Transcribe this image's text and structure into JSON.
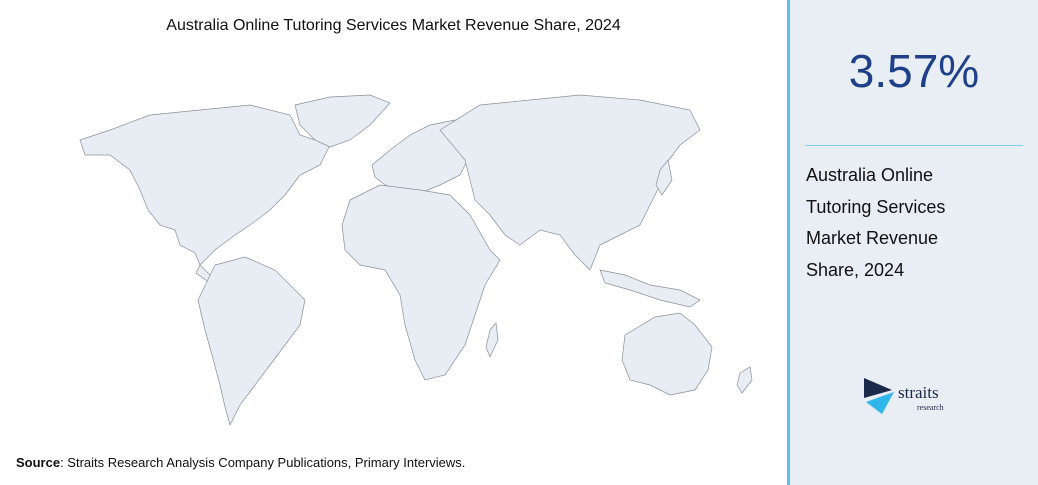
{
  "header": {
    "title": "Australia Online Tutoring Services Market Revenue Share, 2024"
  },
  "stat": {
    "value": "3.57%",
    "description": "Australia Online Tutoring Services Market Revenue Share, 2024"
  },
  "source": {
    "label": "Source",
    "text": ": Straits Research Analysis Company Publications, Primary Interviews."
  },
  "logo": {
    "name": "straits",
    "tagline": "research"
  }
}
